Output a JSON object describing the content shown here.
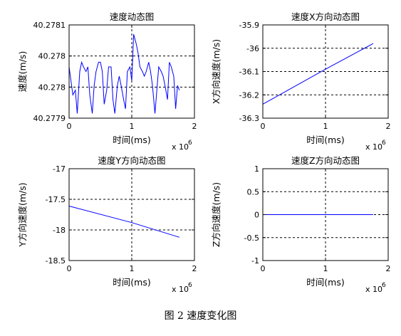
{
  "figure_caption": "图 2  速度变化图",
  "chart_data": [
    {
      "type": "line",
      "title": "速度动态图",
      "xlabel": "时间(ms)",
      "ylabel": "速度(m/s)",
      "x_multiplier_label": "x 10",
      "x_multiplier_exponent": "6",
      "xlim": [
        0,
        2
      ],
      "ylim": [
        40.2779,
        40.2781
      ],
      "xticks": [
        "0",
        "1",
        "2"
      ],
      "yticks": [
        "40.2781",
        "40.278",
        "40.278",
        "40.2779"
      ],
      "grid": true,
      "series": [
        {
          "color": "#0000ff",
          "x": [
            0.0,
            0.03,
            0.06,
            0.1,
            0.13,
            0.17,
            0.2,
            0.23,
            0.27,
            0.3,
            0.33,
            0.37,
            0.4,
            0.43,
            0.47,
            0.5,
            0.53,
            0.56,
            0.6,
            0.63,
            0.67,
            0.7,
            0.73,
            0.77,
            0.8,
            0.83,
            0.87,
            0.9,
            0.93,
            0.97,
            1.0,
            1.03,
            1.07,
            1.1,
            1.13,
            1.17,
            1.2,
            1.23,
            1.27,
            1.3,
            1.33,
            1.37,
            1.4,
            1.43,
            1.47,
            1.5,
            1.53,
            1.57,
            1.6,
            1.63,
            1.67,
            1.7,
            1.73,
            1.76
          ],
          "y": [
            40.27801,
            40.27798,
            40.27795,
            40.27796,
            40.27791,
            40.278,
            40.27802,
            40.27801,
            40.278,
            40.27801,
            40.27795,
            40.27791,
            40.27797,
            40.278,
            40.27802,
            40.27802,
            40.278,
            40.27793,
            40.27796,
            40.27801,
            40.27801,
            40.27794,
            40.27791,
            40.27797,
            40.27799,
            40.27797,
            40.27794,
            40.27792,
            40.278,
            40.27801,
            40.27798,
            40.27808,
            40.27806,
            40.27804,
            40.27801,
            40.278,
            40.27799,
            40.278,
            40.27802,
            40.278,
            40.27797,
            40.27791,
            40.27796,
            40.27801,
            40.278,
            40.27799,
            40.27797,
            40.27794,
            40.27802,
            40.27801,
            40.27799,
            40.27792,
            40.27797,
            40.27796
          ]
        }
      ]
    },
    {
      "type": "line",
      "title": "速度X方向动态图",
      "xlabel": "时间(ms)",
      "ylabel": "X方向速度(m/s)",
      "x_multiplier_label": "x 10",
      "x_multiplier_exponent": "6",
      "xlim": [
        0,
        2
      ],
      "ylim": [
        -36.3,
        -35.9
      ],
      "xticks": [
        "0",
        "1",
        "2"
      ],
      "yticks": [
        "-35.9",
        "-36",
        "-36.1",
        "-36.2",
        "-36.3"
      ],
      "grid": true,
      "series": [
        {
          "color": "#0000ff",
          "x": [
            0,
            1.0,
            1.76
          ],
          "y": [
            -36.24,
            -36.09,
            -35.98
          ]
        }
      ]
    },
    {
      "type": "line",
      "title": "速度Y方向动态图",
      "xlabel": "时间(ms)",
      "ylabel": "Y方向速度(m/s)",
      "x_multiplier_label": "x 10",
      "x_multiplier_exponent": "6",
      "xlim": [
        0,
        2
      ],
      "ylim": [
        -18.5,
        -17
      ],
      "xticks": [
        "0",
        "1",
        "2"
      ],
      "yticks": [
        "-17",
        "-17.5",
        "-18",
        "-18.5"
      ],
      "grid": true,
      "series": [
        {
          "color": "#0000ff",
          "x": [
            0,
            1.0,
            1.76
          ],
          "y": [
            -17.61,
            -17.88,
            -18.12
          ]
        }
      ]
    },
    {
      "type": "line",
      "title": "速度Z方向动态图",
      "xlabel": "时间(ms)",
      "ylabel": "Z方向速度(m/s)",
      "x_multiplier_label": "x 10",
      "x_multiplier_exponent": "6",
      "xlim": [
        0,
        2
      ],
      "ylim": [
        -1,
        1
      ],
      "xticks": [
        "0",
        "1",
        "2"
      ],
      "yticks": [
        "1",
        "0.5",
        "0",
        "-0.5",
        "-1"
      ],
      "grid": true,
      "series": [
        {
          "color": "#0000ff",
          "x": [
            0,
            1.0,
            1.76
          ],
          "y": [
            0,
            0,
            0
          ]
        }
      ]
    }
  ]
}
